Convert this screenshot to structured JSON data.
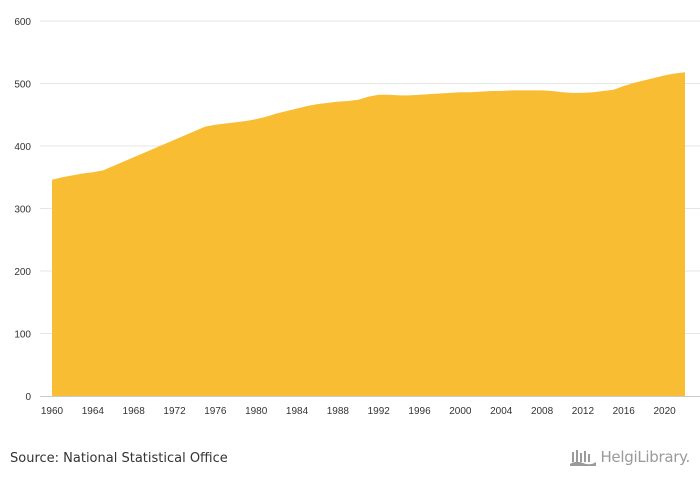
{
  "source_text": "Source: National Statistical Office",
  "logo_text": "HelgiLibrary.",
  "colors": {
    "area": "#f9bd33",
    "grid": "#e6e6e6",
    "axis": "#cccccc",
    "text": "#333333",
    "logo": "#9a9a9a"
  },
  "chart_data": {
    "type": "area",
    "title": "",
    "xlabel": "",
    "ylabel": "",
    "ylim": [
      0,
      600
    ],
    "yticks": [
      0,
      100,
      200,
      300,
      400,
      500,
      600
    ],
    "xlim": [
      1960,
      2022
    ],
    "xticks": [
      1960,
      1964,
      1968,
      1972,
      1976,
      1980,
      1984,
      1988,
      1992,
      1996,
      2000,
      2004,
      2008,
      2012,
      2016,
      2020
    ],
    "grid": true,
    "legend": "none",
    "series": [
      {
        "x": [
          1960,
          1961,
          1962,
          1963,
          1964,
          1965,
          1966,
          1967,
          1968,
          1969,
          1970,
          1971,
          1972,
          1973,
          1974,
          1975,
          1976,
          1977,
          1978,
          1979,
          1980,
          1981,
          1982,
          1983,
          1984,
          1985,
          1986,
          1987,
          1988,
          1989,
          1990,
          1991,
          1992,
          1993,
          1994,
          1995,
          1996,
          1997,
          1998,
          1999,
          2000,
          2001,
          2002,
          2003,
          2004,
          2005,
          2006,
          2007,
          2008,
          2009,
          2010,
          2011,
          2012,
          2013,
          2014,
          2015,
          2016,
          2017,
          2018,
          2019,
          2020,
          2021,
          2022
        ],
        "values": [
          346,
          350,
          353,
          356,
          358,
          361,
          368,
          375,
          382,
          389,
          396,
          403,
          410,
          417,
          424,
          431,
          434,
          436,
          438,
          440,
          443,
          447,
          452,
          456,
          460,
          464,
          467,
          469,
          471,
          472,
          474,
          479,
          482,
          482,
          481,
          481,
          482,
          483,
          484,
          485,
          486,
          486,
          487,
          488,
          488,
          489,
          489,
          489,
          489,
          488,
          486,
          485,
          485,
          486,
          488,
          490,
          496,
          501,
          505,
          509,
          513,
          516,
          518
        ]
      }
    ]
  }
}
